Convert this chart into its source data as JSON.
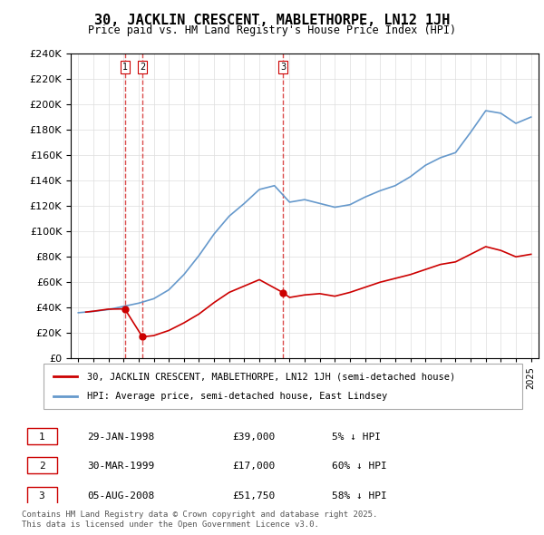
{
  "title": "30, JACKLIN CRESCENT, MABLETHORPE, LN12 1JH",
  "subtitle": "Price paid vs. HM Land Registry's House Price Index (HPI)",
  "legend_line1": "30, JACKLIN CRESCENT, MABLETHORPE, LN12 1JH (semi-detached house)",
  "legend_line2": "HPI: Average price, semi-detached house, East Lindsey",
  "footer": "Contains HM Land Registry data © Crown copyright and database right 2025.\nThis data is licensed under the Open Government Licence v3.0.",
  "transactions": [
    {
      "num": 1,
      "date": "29-JAN-1998",
      "price": "£39,000",
      "pct": "5% ↓ HPI"
    },
    {
      "num": 2,
      "date": "30-MAR-1999",
      "price": "£17,000",
      "pct": "60% ↓ HPI"
    },
    {
      "num": 3,
      "date": "05-AUG-2008",
      "price": "£51,750",
      "pct": "58% ↓ HPI"
    }
  ],
  "red_line_color": "#cc0000",
  "blue_line_color": "#6699cc",
  "vline_color": "#cc0000",
  "background_color": "#ffffff",
  "ylim": [
    0,
    240000
  ],
  "yticks": [
    0,
    20000,
    40000,
    60000,
    80000,
    100000,
    120000,
    140000,
    160000,
    180000,
    200000,
    220000,
    240000
  ],
  "xlim_start": 1994.5,
  "xlim_end": 2025.5,
  "transaction_years": [
    1998.08,
    1999.25,
    2008.58
  ],
  "hpi_years": [
    1995,
    1996,
    1997,
    1998,
    1999,
    2000,
    2001,
    2002,
    2003,
    2004,
    2005,
    2006,
    2007,
    2008,
    2009,
    2010,
    2011,
    2012,
    2013,
    2014,
    2015,
    2016,
    2017,
    2018,
    2019,
    2020,
    2021,
    2022,
    2023,
    2024,
    2025
  ],
  "hpi_values": [
    36000,
    37000,
    38500,
    41000,
    43500,
    47000,
    54000,
    66000,
    81000,
    98000,
    112000,
    122000,
    133000,
    136000,
    123000,
    125000,
    122000,
    119000,
    121000,
    127000,
    132000,
    136000,
    143000,
    152000,
    158000,
    162000,
    178000,
    195000,
    193000,
    185000,
    190000
  ],
  "price_paid_years": [
    1995.5,
    1996.0,
    1997.0,
    1998.08,
    1999.25,
    2000.0,
    2001.0,
    2002.0,
    2003.0,
    2004.0,
    2005.0,
    2006.0,
    2007.0,
    2008.58,
    2009.0,
    2010.0,
    2011.0,
    2012.0,
    2013.0,
    2014.0,
    2015.0,
    2016.0,
    2017.0,
    2018.0,
    2019.0,
    2020.0,
    2021.0,
    2022.0,
    2023.0,
    2024.0,
    2025.0
  ],
  "price_paid_values": [
    36500,
    37200,
    38800,
    39000,
    17000,
    18000,
    22000,
    28000,
    35000,
    44000,
    52000,
    57000,
    62000,
    51750,
    48000,
    50000,
    51000,
    49000,
    52000,
    56000,
    60000,
    63000,
    66000,
    70000,
    74000,
    76000,
    82000,
    88000,
    85000,
    80000,
    82000
  ]
}
